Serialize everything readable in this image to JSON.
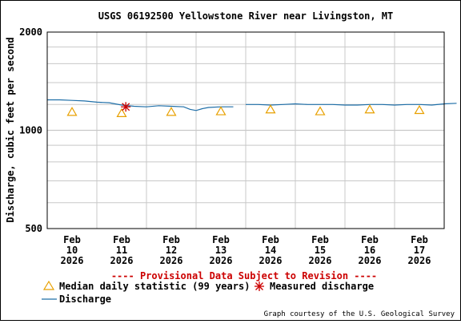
{
  "chart_data": {
    "type": "line",
    "title": "USGS 06192500 Yellowstone River near Livingston, MT",
    "xlabel": "",
    "ylabel": "Discharge, cubic feet per second",
    "y_scale": "log",
    "ylim": [
      500,
      2000
    ],
    "y_ticks": [
      "500",
      "1000",
      "2000"
    ],
    "grid": true,
    "x_domain": [
      "2026-02-09 12:00",
      "2026-02-17 12:00"
    ],
    "x_ticks": [
      {
        "date": "2026-02-10",
        "month": "Feb",
        "day": "10",
        "year": "2026"
      },
      {
        "date": "2026-02-11",
        "month": "Feb",
        "day": "11",
        "year": "2026"
      },
      {
        "date": "2026-02-12",
        "month": "Feb",
        "day": "12",
        "year": "2026"
      },
      {
        "date": "2026-02-13",
        "month": "Feb",
        "day": "13",
        "year": "2026"
      },
      {
        "date": "2026-02-14",
        "month": "Feb",
        "day": "14",
        "year": "2026"
      },
      {
        "date": "2026-02-15",
        "month": "Feb",
        "day": "15",
        "year": "2026"
      },
      {
        "date": "2026-02-16",
        "month": "Feb",
        "day": "16",
        "year": "2026"
      },
      {
        "date": "2026-02-17",
        "month": "Feb",
        "day": "17",
        "year": "2026"
      }
    ],
    "series": [
      {
        "name": "Discharge",
        "color": "#1f6fa8",
        "segments": [
          [
            [
              "2026-02-09 12:00",
              1240
            ],
            [
              "2026-02-09 18:00",
              1240
            ],
            [
              "2026-02-10 00:00",
              1235
            ],
            [
              "2026-02-10 06:00",
              1230
            ],
            [
              "2026-02-10 12:00",
              1220
            ],
            [
              "2026-02-10 18:00",
              1215
            ],
            [
              "2026-02-11 00:00",
              1195
            ],
            [
              "2026-02-11 06:00",
              1185
            ],
            [
              "2026-02-11 12:00",
              1180
            ],
            [
              "2026-02-11 18:00",
              1190
            ],
            [
              "2026-02-12 00:00",
              1185
            ],
            [
              "2026-02-12 06:00",
              1180
            ],
            [
              "2026-02-12 09:00",
              1160
            ],
            [
              "2026-02-12 12:00",
              1150
            ],
            [
              "2026-02-12 15:00",
              1165
            ],
            [
              "2026-02-12 18:00",
              1175
            ],
            [
              "2026-02-13 00:00",
              1180
            ],
            [
              "2026-02-13 06:00",
              1180
            ]
          ],
          [
            [
              "2026-02-13 12:00",
              1200
            ],
            [
              "2026-02-13 18:00",
              1200
            ],
            [
              "2026-02-14 00:00",
              1195
            ],
            [
              "2026-02-14 06:00",
              1200
            ],
            [
              "2026-02-14 12:00",
              1205
            ],
            [
              "2026-02-14 18:00",
              1200
            ],
            [
              "2026-02-15 00:00",
              1200
            ],
            [
              "2026-02-15 06:00",
              1200
            ],
            [
              "2026-02-15 12:00",
              1195
            ],
            [
              "2026-02-15 18:00",
              1195
            ],
            [
              "2026-02-16 00:00",
              1200
            ],
            [
              "2026-02-16 06:00",
              1200
            ],
            [
              "2026-02-16 12:00",
              1195
            ],
            [
              "2026-02-16 18:00",
              1200
            ],
            [
              "2026-02-17 00:00",
              1200
            ],
            [
              "2026-02-17 06:00",
              1195
            ],
            [
              "2026-02-17 12:00",
              1205
            ],
            [
              "2026-02-17 18:00",
              1210
            ]
          ]
        ]
      },
      {
        "name": "Median daily statistic (99 years)",
        "color": "#e8a000",
        "marker": "triangle",
        "points": [
          [
            "2026-02-10 00:00",
            1140
          ],
          [
            "2026-02-11 00:00",
            1130
          ],
          [
            "2026-02-12 00:00",
            1140
          ],
          [
            "2026-02-13 00:00",
            1145
          ],
          [
            "2026-02-14 00:00",
            1160
          ],
          [
            "2026-02-15 00:00",
            1145
          ],
          [
            "2026-02-16 00:00",
            1160
          ],
          [
            "2026-02-17 00:00",
            1155
          ]
        ]
      },
      {
        "name": "Measured discharge",
        "color": "#cc0000",
        "marker": "asterisk",
        "points": [
          [
            "2026-02-11 02:00",
            1180
          ]
        ]
      }
    ]
  },
  "provisional_note": "---- Provisional Data Subject to Revision ----",
  "legend": {
    "median_label": "Median daily statistic (99 years)",
    "measured_label": "Measured discharge",
    "discharge_label": "Discharge"
  },
  "credit": "Graph courtesy of the U.S. Geological Survey"
}
